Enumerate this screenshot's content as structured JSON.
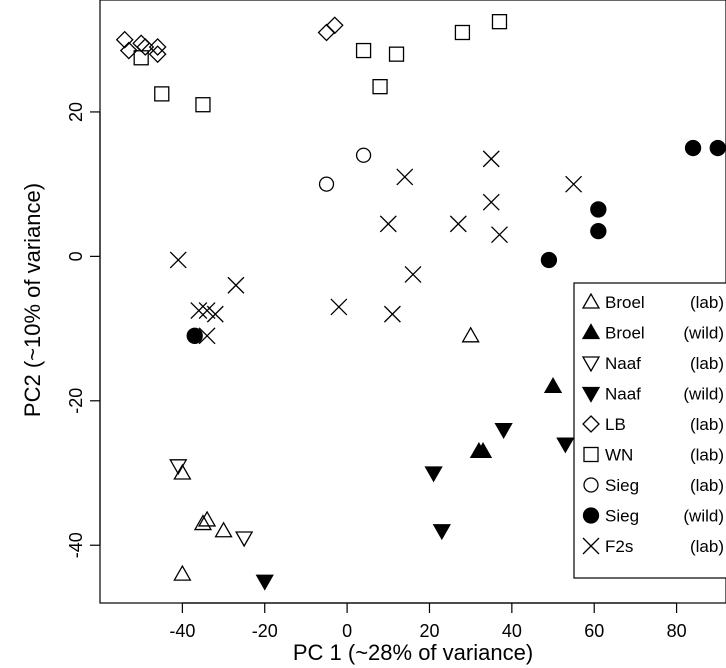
{
  "chart_data": {
    "type": "scatter",
    "title": "",
    "xlabel": "PC 1  (~28% of variance)",
    "ylabel": "PC2  (~10% of variance)",
    "xlim": [
      -60,
      92
    ],
    "ylim": [
      -48,
      35.5
    ],
    "xticks": [
      -40,
      -20,
      0,
      20,
      40,
      60,
      80
    ],
    "yticks": [
      -40,
      -20,
      0,
      20
    ],
    "grid": false,
    "legend_position": "right",
    "series": [
      {
        "name": "Broel",
        "tag": "(lab)",
        "marker": "triangle-up-open",
        "points": [
          [
            30,
            -11
          ],
          [
            -40,
            -30
          ],
          [
            -35,
            -37
          ],
          [
            -34,
            -36.5
          ],
          [
            -30,
            -38
          ],
          [
            -40,
            -44
          ]
        ]
      },
      {
        "name": "Broel",
        "tag": "(wild)",
        "marker": "triangle-up-filled",
        "points": [
          [
            50,
            -18
          ],
          [
            32,
            -27
          ],
          [
            33,
            -27
          ]
        ]
      },
      {
        "name": "Naaf",
        "tag": "(lab)",
        "marker": "triangle-down-open",
        "points": [
          [
            -41,
            -29
          ],
          [
            -25,
            -39
          ]
        ]
      },
      {
        "name": "Naaf",
        "tag": "(wild)",
        "marker": "triangle-down-filled",
        "points": [
          [
            38,
            -24
          ],
          [
            53,
            -26
          ],
          [
            21,
            -30
          ],
          [
            23,
            -38
          ],
          [
            -20,
            -45
          ]
        ]
      },
      {
        "name": "LB",
        "tag": "(lab)",
        "marker": "diamond-open",
        "points": [
          [
            -54,
            30
          ],
          [
            -53,
            28.5
          ],
          [
            -50,
            29.5
          ],
          [
            -49,
            29
          ],
          [
            -46,
            28
          ],
          [
            -46,
            29
          ],
          [
            -5,
            31
          ],
          [
            -3,
            32
          ]
        ]
      },
      {
        "name": "WN",
        "tag": "(lab)",
        "marker": "square-open",
        "points": [
          [
            -50,
            27.5
          ],
          [
            -45,
            22.5
          ],
          [
            -35,
            21
          ],
          [
            4,
            28.5
          ],
          [
            12,
            28
          ],
          [
            8,
            23.5
          ],
          [
            28,
            31
          ],
          [
            37,
            32.5
          ]
        ]
      },
      {
        "name": "Sieg",
        "tag": "(lab)",
        "marker": "circle-open",
        "points": [
          [
            4,
            14
          ],
          [
            -5,
            10
          ]
        ]
      },
      {
        "name": "Sieg",
        "tag": "(wild)",
        "marker": "circle-filled",
        "points": [
          [
            -37,
            -11
          ],
          [
            49,
            -0.5
          ],
          [
            61,
            6.5
          ],
          [
            61,
            3.5
          ],
          [
            84,
            15
          ],
          [
            90,
            15
          ]
        ]
      },
      {
        "name": "F2s",
        "tag": "(lab)",
        "marker": "x",
        "points": [
          [
            -41,
            -0.5
          ],
          [
            -36,
            -7.5
          ],
          [
            -34,
            -7.5
          ],
          [
            -32,
            -8
          ],
          [
            -34,
            -11
          ],
          [
            -27,
            -4
          ],
          [
            -2,
            -7
          ],
          [
            10,
            4.5
          ],
          [
            11,
            -8
          ],
          [
            14,
            11
          ],
          [
            16,
            -2.5
          ],
          [
            27,
            4.5
          ],
          [
            35,
            13.5
          ],
          [
            35,
            7.5
          ],
          [
            37,
            3
          ],
          [
            55,
            10
          ]
        ]
      }
    ]
  }
}
